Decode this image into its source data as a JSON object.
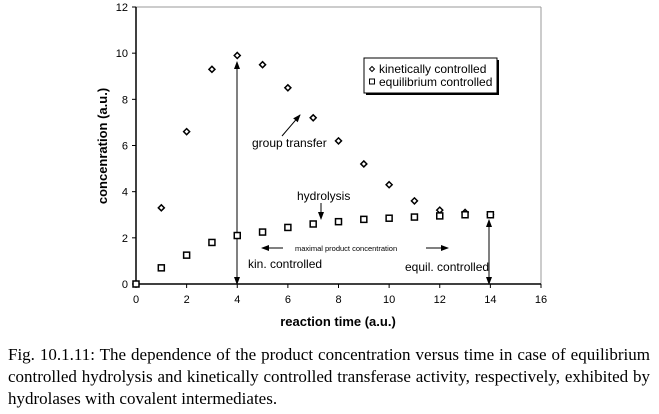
{
  "chart_data": {
    "type": "scatter",
    "xlabel": "reaction time (a.u.)",
    "ylabel": "concenration (a.u.)",
    "xlim": [
      0,
      16
    ],
    "ylim": [
      0,
      12
    ],
    "xticks": [
      0,
      2,
      4,
      6,
      8,
      10,
      12,
      14,
      16
    ],
    "yticks": [
      0,
      2,
      4,
      6,
      8,
      10,
      12
    ],
    "grid": false,
    "legend_position": "top-right",
    "series": [
      {
        "name": "kinetically controlled",
        "marker": "diamond",
        "x": [
          0,
          1,
          2,
          3,
          4,
          5,
          6,
          7,
          8,
          9,
          10,
          11,
          12,
          13,
          14
        ],
        "y": [
          0,
          3.3,
          6.6,
          9.3,
          9.9,
          9.5,
          8.5,
          7.2,
          6.2,
          5.2,
          4.3,
          3.6,
          3.2,
          3.1,
          3.0
        ]
      },
      {
        "name": "equilibrium controlled",
        "marker": "square",
        "x": [
          0,
          1,
          2,
          3,
          4,
          5,
          6,
          7,
          8,
          9,
          10,
          11,
          12,
          13,
          14
        ],
        "y": [
          0,
          0.7,
          1.25,
          1.8,
          2.1,
          2.25,
          2.45,
          2.6,
          2.7,
          2.8,
          2.85,
          2.9,
          2.95,
          3.0,
          3.0
        ]
      }
    ],
    "annotations": {
      "group_transfer": "group transfer",
      "hydrolysis": "hydrolysis",
      "maximal": "maximal product concentration",
      "kin": "kin. controlled",
      "equil": "equil. controlled"
    }
  },
  "caption": "Fig. 10.1.11: The dependence of the product concentration versus time in case of equilibrium controlled hydrolysis and kinetically controlled transferase activity, respectively, exhibited by hydrolases with covalent intermediates."
}
